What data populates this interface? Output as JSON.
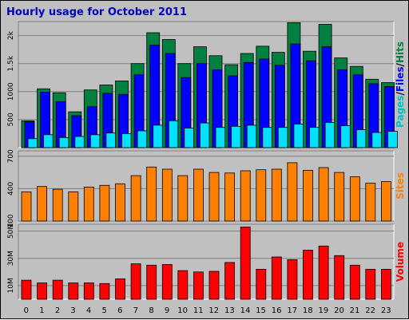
{
  "title": "Hourly usage for October 2011",
  "chart_data": [
    {
      "type": "bar",
      "name": "pages-files-hits",
      "categories": [
        "0",
        "1",
        "2",
        "3",
        "4",
        "5",
        "6",
        "7",
        "8",
        "9",
        "10",
        "11",
        "12",
        "13",
        "14",
        "15",
        "16",
        "17",
        "18",
        "19",
        "20",
        "21",
        "22",
        "23"
      ],
      "series": [
        {
          "name": "Hits",
          "color": "#008040",
          "values": [
            480,
            1050,
            980,
            640,
            1030,
            1120,
            1190,
            1500,
            2050,
            1930,
            1500,
            1800,
            1640,
            1480,
            1680,
            1810,
            1700,
            2230,
            1720,
            2200,
            1600,
            1450,
            1220,
            1160
          ]
        },
        {
          "name": "Files",
          "color": "#0000ff",
          "values": [
            460,
            990,
            820,
            570,
            730,
            970,
            950,
            1300,
            1830,
            1680,
            1250,
            1500,
            1390,
            1280,
            1520,
            1580,
            1470,
            1850,
            1550,
            1800,
            1390,
            1300,
            1140,
            1090
          ]
        },
        {
          "name": "Pages",
          "color": "#00e0ff",
          "values": [
            160,
            230,
            180,
            200,
            230,
            260,
            250,
            300,
            400,
            480,
            350,
            440,
            360,
            380,
            400,
            360,
            360,
            420,
            360,
            450,
            390,
            320,
            270,
            290
          ]
        }
      ],
      "ylim": [
        0,
        2250
      ],
      "yticks": [
        500,
        1000,
        1500,
        2000
      ],
      "ytick_labels": [
        "500",
        "1000",
        "1.5k",
        "2k"
      ],
      "ylabel_parts": [
        {
          "text": "Pages",
          "color": "#00c0c0"
        },
        {
          "text": "/",
          "color": "#000000"
        },
        {
          "text": "Files",
          "color": "#0000ff"
        },
        {
          "text": "/",
          "color": "#000000"
        },
        {
          "text": "Hits",
          "color": "#008040"
        }
      ]
    },
    {
      "type": "bar",
      "name": "sites",
      "categories": [
        "0",
        "1",
        "2",
        "3",
        "4",
        "5",
        "6",
        "7",
        "8",
        "9",
        "10",
        "11",
        "12",
        "13",
        "14",
        "15",
        "16",
        "17",
        "18",
        "19",
        "20",
        "21",
        "22",
        "23"
      ],
      "series": [
        {
          "name": "Sites",
          "color": "#ff8000",
          "values": [
            370,
            420,
            395,
            370,
            415,
            430,
            445,
            520,
            600,
            580,
            520,
            580,
            550,
            545,
            565,
            575,
            580,
            640,
            570,
            595,
            550,
            510,
            450,
            465
          ]
        }
      ],
      "ylim": [
        100,
        750
      ],
      "yticks": [
        100,
        400,
        700
      ],
      "ytick_labels": [
        "100",
        "400",
        "700"
      ],
      "ylabel_parts": [
        {
          "text": "Sites",
          "color": "#ff8000"
        }
      ]
    },
    {
      "type": "bar",
      "name": "volume",
      "categories": [
        "0",
        "1",
        "2",
        "3",
        "4",
        "5",
        "6",
        "7",
        "8",
        "9",
        "10",
        "11",
        "12",
        "13",
        "14",
        "15",
        "16",
        "17",
        "18",
        "19",
        "20",
        "21",
        "22",
        "23"
      ],
      "series": [
        {
          "name": "Volume",
          "color": "#ff0000",
          "values": [
            14,
            12,
            14,
            12,
            12,
            11.5,
            15,
            26,
            25,
            25.5,
            21,
            20,
            20.5,
            27,
            53,
            22,
            31,
            29,
            36,
            39,
            32,
            25,
            22,
            22
          ]
        }
      ],
      "ylim": [
        0,
        55
      ],
      "yticks": [
        10,
        30,
        50
      ],
      "ytick_labels": [
        "10M",
        "30M",
        "50M"
      ],
      "ylabel_parts": [
        {
          "text": "Volume",
          "color": "#ff0000"
        }
      ]
    }
  ]
}
